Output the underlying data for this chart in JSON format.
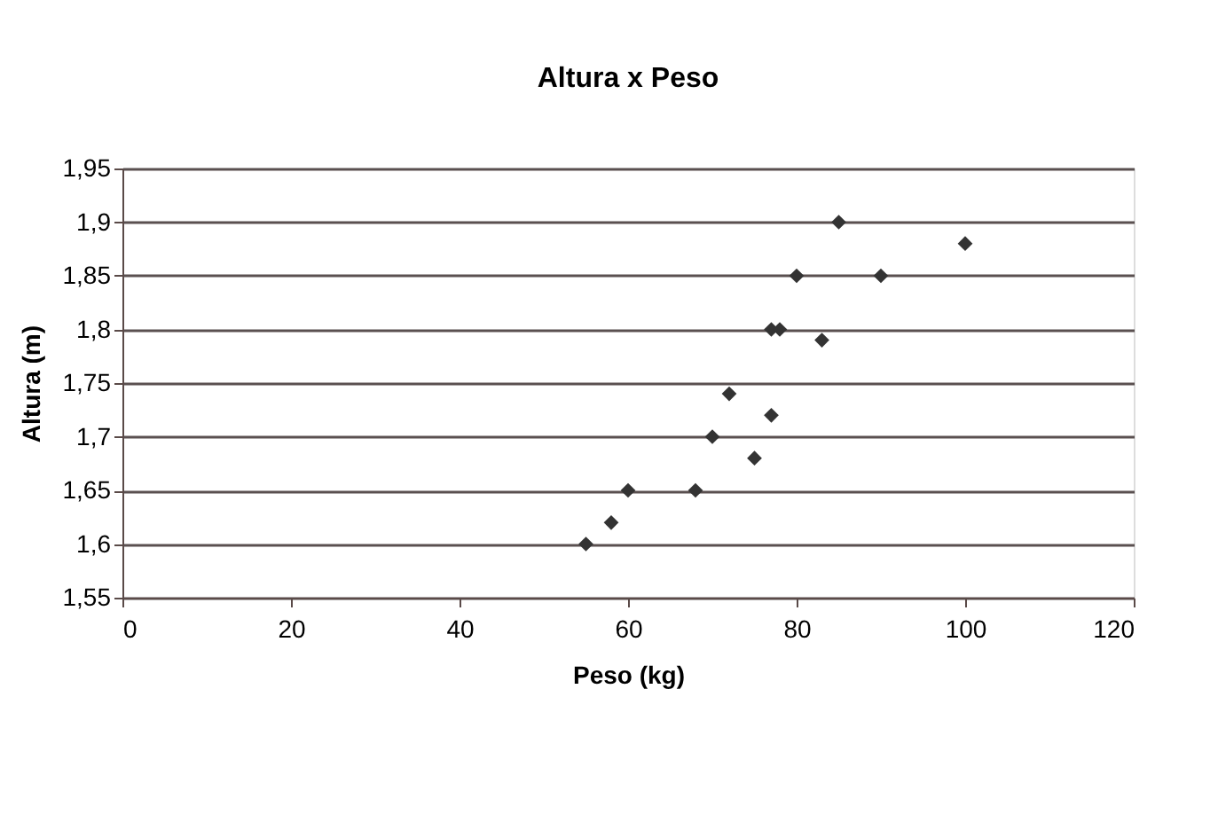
{
  "chart_data": {
    "type": "scatter",
    "title": "Altura x Peso",
    "xlabel": "Peso (kg)",
    "ylabel": "Altura (m)",
    "x": [
      55,
      58,
      60,
      68,
      70,
      72,
      75,
      77,
      77,
      78,
      80,
      83,
      85,
      90,
      100
    ],
    "series": [
      {
        "color": "#333333",
        "values": [
          1.6,
          1.62,
          1.65,
          1.65,
          1.7,
          1.74,
          1.68,
          1.72,
          1.8,
          1.8,
          1.85,
          1.79,
          1.9,
          1.85,
          1.88
        ]
      }
    ],
    "xlim": [
      0,
      120
    ],
    "xticks": [
      0,
      20,
      40,
      60,
      80,
      100,
      120
    ],
    "ylim": [
      1.55,
      1.95
    ],
    "yticks": [
      {
        "value": 1.55,
        "label": "1,55"
      },
      {
        "value": 1.6,
        "label": "1,6"
      },
      {
        "value": 1.65,
        "label": "1,65"
      },
      {
        "value": 1.7,
        "label": "1,7"
      },
      {
        "value": 1.75,
        "label": "1,75"
      },
      {
        "value": 1.8,
        "label": "1,8"
      },
      {
        "value": 1.85,
        "label": "1,85"
      },
      {
        "value": 1.9,
        "label": "1,9"
      },
      {
        "value": 1.95,
        "label": "1,95"
      }
    ],
    "grid": "y",
    "marker": "diamond",
    "legend": false
  }
}
